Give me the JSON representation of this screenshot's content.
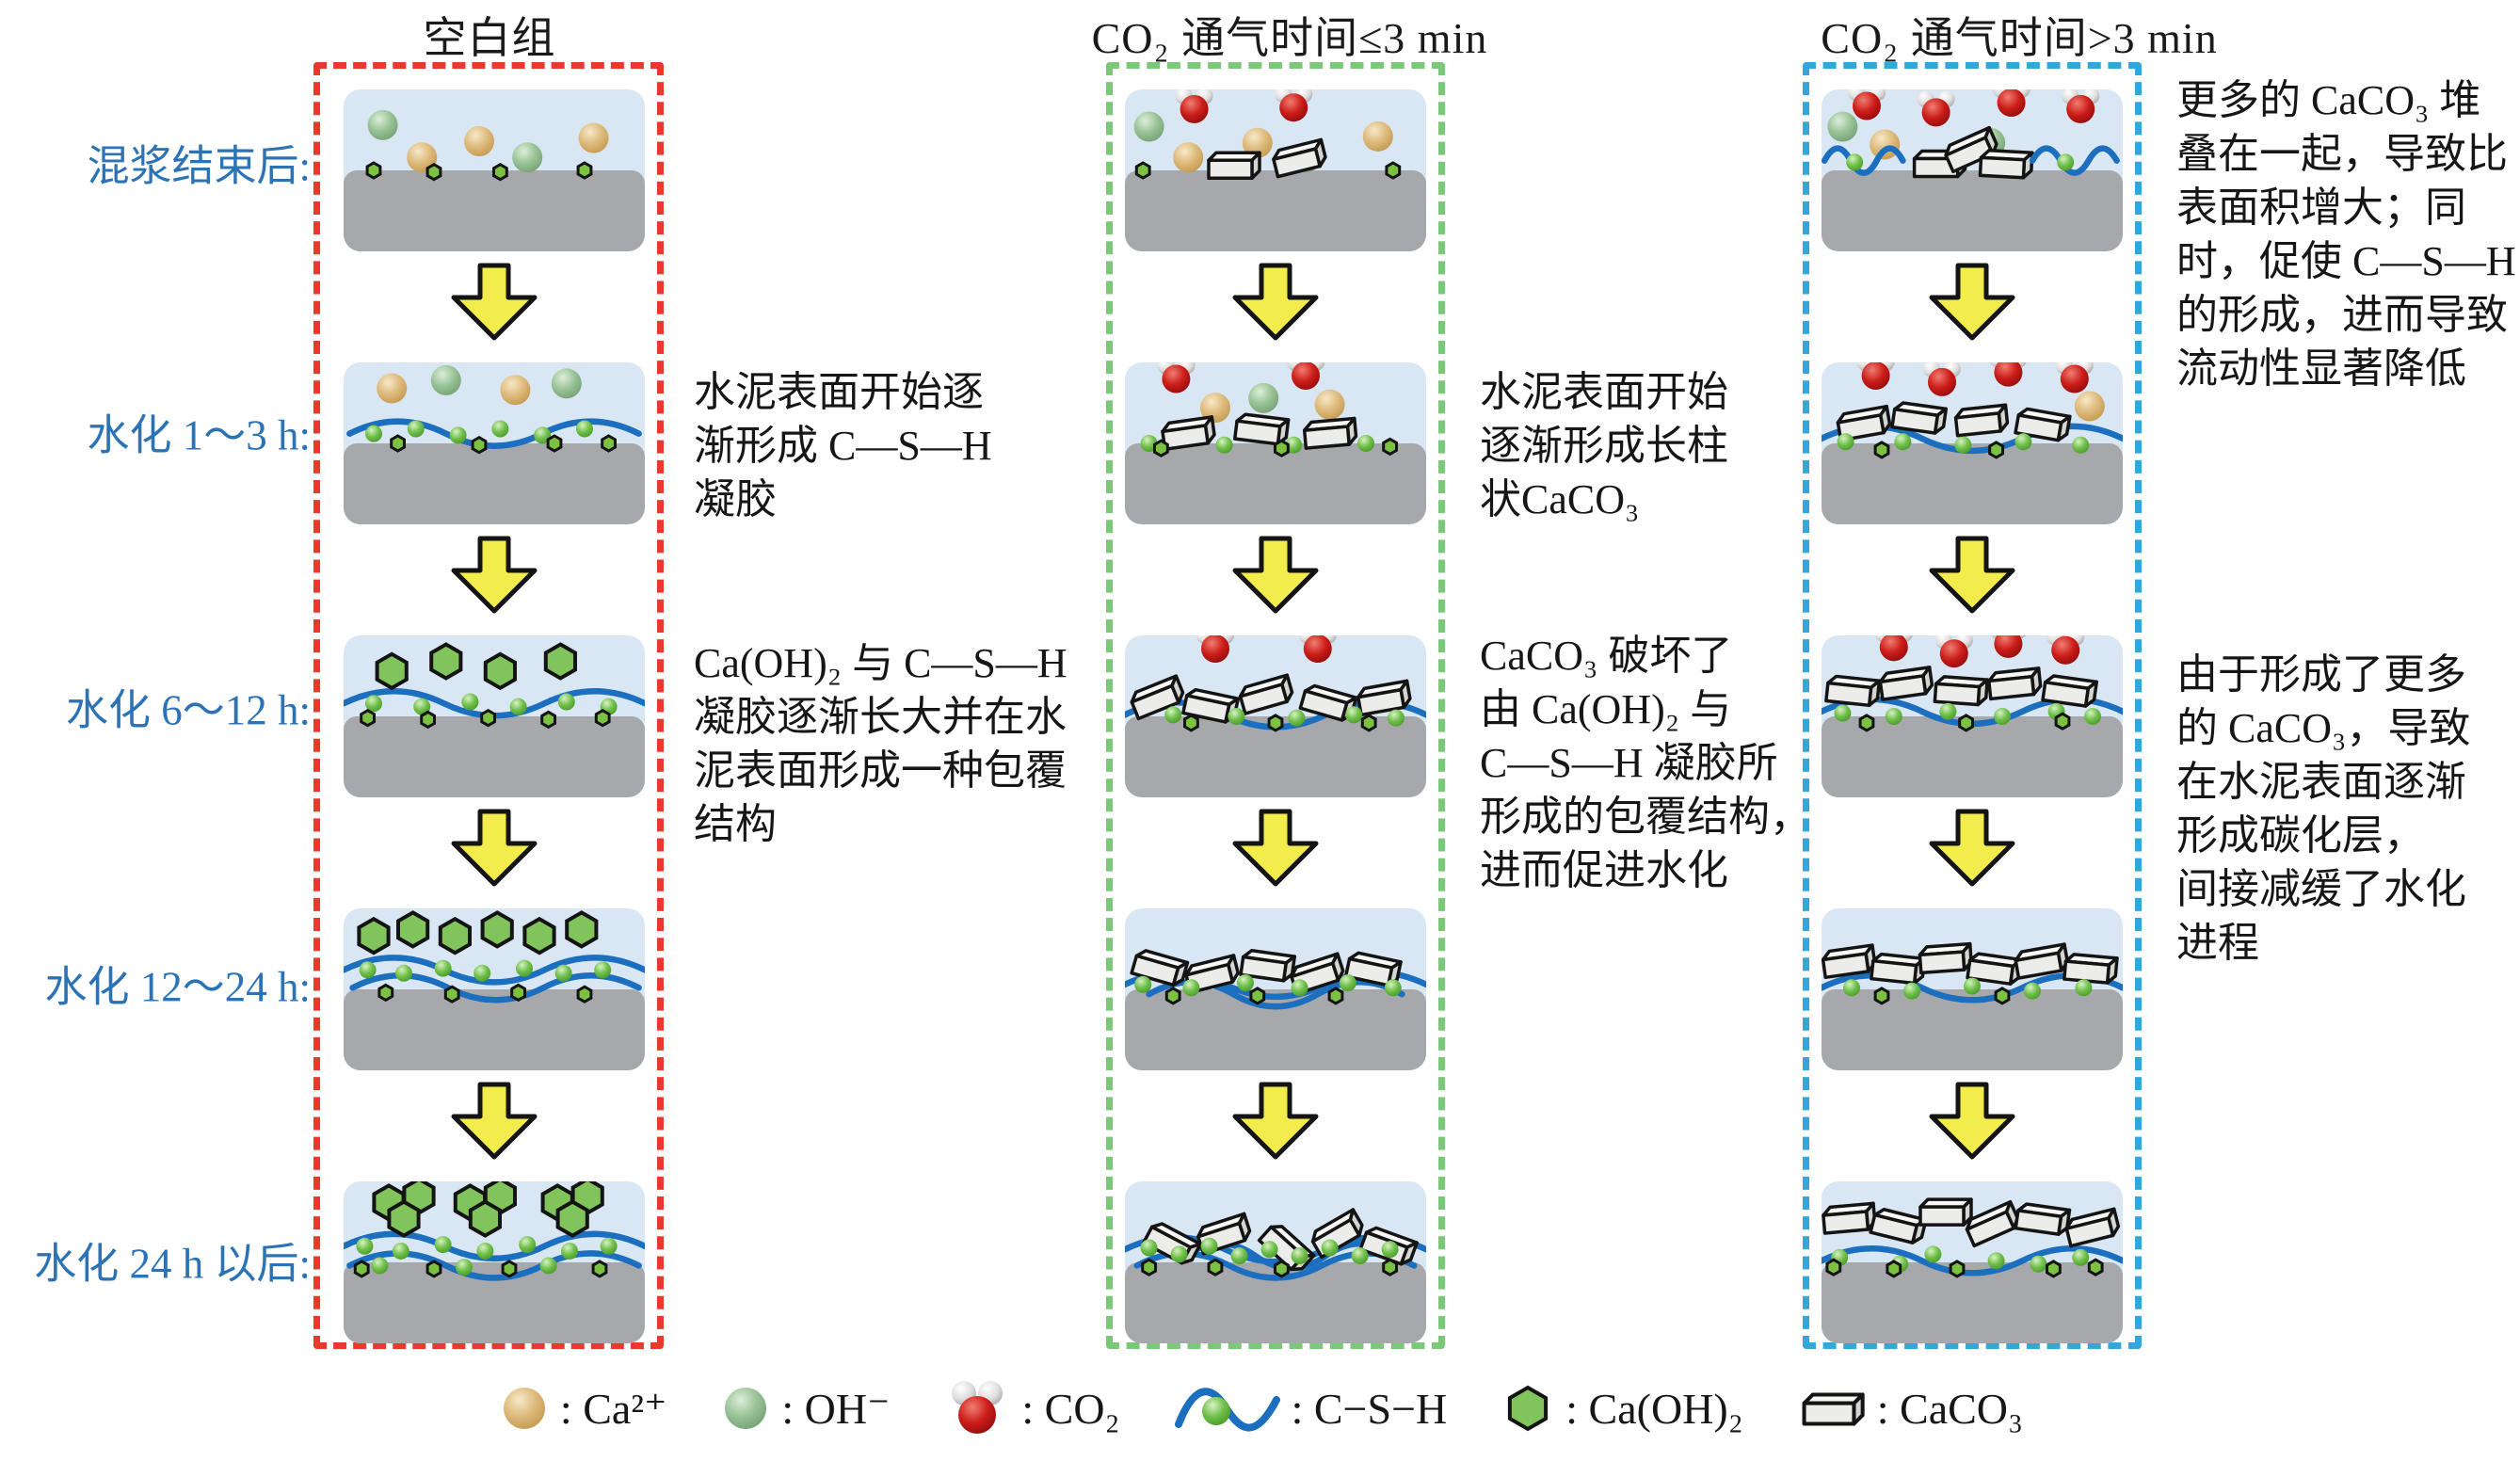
{
  "figure": {
    "columns": [
      {
        "id": "blank",
        "title": "空白组",
        "border_color": "#e9392d"
      },
      {
        "id": "co2-le-3min",
        "title": "CO₂ 通气时间≤3 min",
        "border_color": "#7cc879"
      },
      {
        "id": "co2-gt-3min",
        "title": "CO₂ 通气时间>3 min",
        "border_color": "#33a7dc"
      }
    ],
    "row_labels": [
      "混浆结束后:",
      "水化 1～3 h:",
      "水化 6～12 h:",
      "水化 12～24 h:",
      "水化 24 h 以后:"
    ],
    "annotations": [
      {
        "id": "blank-1-3h",
        "text": "水泥表面开始逐\n渐形成 C—S—H\n凝胶"
      },
      {
        "id": "blank-6-12h",
        "text": "Ca(OH)₂ 与 C—S—H\n凝胶逐渐长大并在水\n泥表面形成一种包覆\n结构"
      },
      {
        "id": "le3-1-3h",
        "text": "水泥表面开始\n逐渐形成长柱\n状CaCO₃"
      },
      {
        "id": "le3-6-12h",
        "text": "CaCO₃ 破坏了\n由 Ca(OH)₂ 与\nC—S—H 凝胶所\n形成的包覆结构，\n进而促进水化"
      },
      {
        "id": "gt3-top",
        "text": "更多的 CaCO₃ 堆\n叠在一起，导致比\n表面积增大；同\n时，促使 C—S—H\n的形成，进而导致\n流动性显著降低"
      },
      {
        "id": "gt3-mid",
        "text": "由于形成了更多\n的 CaCO₃，导致\n在水泥表面逐渐\n形成碳化层，\n间接减缓了水化\n进程"
      }
    ],
    "legend": [
      {
        "icon": "ca-sphere-icon",
        "label": ": Ca²⁺"
      },
      {
        "icon": "oh-sphere-icon",
        "label": ": OH⁻"
      },
      {
        "icon": "co2-molecule-icon",
        "label": ": CO₂"
      },
      {
        "icon": "csh-curve-icon",
        "label": ": C−S−H"
      },
      {
        "icon": "hexagon-icon",
        "label": ": Ca(OH)₂"
      },
      {
        "icon": "caco3-box-icon",
        "label": ": CaCO₃"
      }
    ],
    "colors": {
      "row_label": "#2c73b5",
      "liquid": "#d9e6f3",
      "cement": "#a6a8ab",
      "arrow": "#f2ec4d",
      "csh_line": "#1c6fbf",
      "hexagon": "#82c45c",
      "small_hexagon": "#7cc142",
      "box_face": "#ececea",
      "title_text": "#1a1a1a"
    },
    "scenes": {
      "c0r0": [
        [
          "oh",
          13,
          22
        ],
        [
          "ca",
          26,
          42
        ],
        [
          "ca",
          45,
          32
        ],
        [
          "oh",
          61,
          42
        ],
        [
          "ca",
          83,
          30
        ],
        [
          "shex",
          10,
          50
        ],
        [
          "shex",
          30,
          51
        ],
        [
          "shex",
          52,
          51
        ],
        [
          "shex",
          80,
          50
        ]
      ],
      "c0r1": [
        [
          "csh",
          2,
          44,
          96
        ],
        [
          "ca",
          16,
          16
        ],
        [
          "oh",
          34,
          11
        ],
        [
          "ca",
          57,
          17
        ],
        [
          "oh",
          74,
          13
        ],
        [
          "bead",
          10,
          44
        ],
        [
          "bead",
          24,
          41
        ],
        [
          "bead",
          38,
          45
        ],
        [
          "bead",
          52,
          41
        ],
        [
          "bead",
          66,
          45
        ],
        [
          "bead",
          80,
          41
        ],
        [
          "shex",
          18,
          50
        ],
        [
          "shex",
          45,
          51
        ],
        [
          "shex",
          70,
          50
        ],
        [
          "shex",
          88,
          50
        ]
      ],
      "c0r2": [
        [
          "csh",
          0,
          42,
          100
        ],
        [
          "hex",
          16,
          22
        ],
        [
          "hex",
          34,
          16
        ],
        [
          "hex",
          52,
          22
        ],
        [
          "hex",
          72,
          16
        ],
        [
          "bead",
          10,
          42
        ],
        [
          "bead",
          26,
          44
        ],
        [
          "bead",
          42,
          41
        ],
        [
          "bead",
          58,
          44
        ],
        [
          "bead",
          74,
          41
        ],
        [
          "bead",
          88,
          44
        ],
        [
          "shex",
          8,
          51
        ],
        [
          "shex",
          28,
          52
        ],
        [
          "shex",
          48,
          51
        ],
        [
          "shex",
          68,
          52
        ],
        [
          "shex",
          86,
          51
        ]
      ],
      "c0r3": [
        [
          "csh",
          0,
          38,
          100
        ],
        [
          "csh",
          3,
          49,
          95
        ],
        [
          "hex",
          10,
          17
        ],
        [
          "hex",
          23,
          13
        ],
        [
          "hex",
          37,
          17
        ],
        [
          "hex",
          51,
          13
        ],
        [
          "hex",
          65,
          17
        ],
        [
          "hex",
          79,
          13
        ],
        [
          "bead",
          8,
          38
        ],
        [
          "bead",
          20,
          40
        ],
        [
          "bead",
          33,
          37
        ],
        [
          "bead",
          46,
          40
        ],
        [
          "bead",
          60,
          37
        ],
        [
          "bead",
          73,
          40
        ],
        [
          "bead",
          86,
          38
        ],
        [
          "shex",
          14,
          52
        ],
        [
          "shex",
          36,
          53
        ],
        [
          "shex",
          58,
          52
        ],
        [
          "shex",
          80,
          53
        ]
      ],
      "c0r4": [
        [
          "csh",
          0,
          40,
          100
        ],
        [
          "csh",
          2,
          52,
          96
        ],
        [
          "hex",
          15,
          13
        ],
        [
          "hex",
          25,
          9
        ],
        [
          "hex",
          20,
          23
        ],
        [
          "hex",
          42,
          13
        ],
        [
          "hex",
          52,
          9
        ],
        [
          "hex",
          47,
          23
        ],
        [
          "hex",
          71,
          13
        ],
        [
          "hex",
          81,
          9
        ],
        [
          "hex",
          76,
          23
        ],
        [
          "bead",
          7,
          40
        ],
        [
          "bead",
          19,
          43
        ],
        [
          "bead",
          33,
          39
        ],
        [
          "bead",
          47,
          43
        ],
        [
          "bead",
          61,
          39
        ],
        [
          "bead",
          75,
          43
        ],
        [
          "bead",
          88,
          40
        ],
        [
          "bead",
          12,
          52
        ],
        [
          "bead",
          40,
          53
        ],
        [
          "bead",
          68,
          52
        ],
        [
          "shex",
          6,
          54
        ],
        [
          "shex",
          30,
          54
        ],
        [
          "shex",
          55,
          54
        ],
        [
          "shex",
          85,
          54
        ]
      ],
      "c1r0": [
        [
          "co2",
          23,
          11
        ],
        [
          "co2",
          56,
          10
        ],
        [
          "oh",
          8,
          23
        ],
        [
          "ca",
          21,
          42
        ],
        [
          "ca",
          44,
          33
        ],
        [
          "oh",
          60,
          42
        ],
        [
          "ca",
          84,
          29
        ],
        [
          "box",
          35,
          49,
          0
        ],
        [
          "box",
          57,
          45,
          -14
        ],
        [
          "shex",
          6,
          50
        ],
        [
          "shex",
          89,
          50
        ]
      ],
      "c1r1": [
        [
          "co2",
          17,
          9
        ],
        [
          "co2",
          60,
          7
        ],
        [
          "ca",
          30,
          28
        ],
        [
          "oh",
          46,
          22
        ],
        [
          "ca",
          68,
          26
        ],
        [
          "box",
          20,
          46,
          -8
        ],
        [
          "box",
          44,
          43,
          7
        ],
        [
          "box",
          67,
          46,
          -5
        ],
        [
          "bead",
          8,
          50
        ],
        [
          "bead",
          33,
          51
        ],
        [
          "bead",
          56,
          51
        ],
        [
          "bead",
          80,
          50
        ],
        [
          "shex",
          12,
          53
        ],
        [
          "shex",
          52,
          53
        ],
        [
          "shex",
          88,
          52
        ]
      ],
      "c1r2": [
        [
          "csh",
          0,
          49,
          100
        ],
        [
          "co2",
          30,
          7
        ],
        [
          "co2",
          64,
          7
        ],
        [
          "box",
          10,
          41,
          -22
        ],
        [
          "box",
          27,
          45,
          12
        ],
        [
          "box",
          46,
          39,
          -16
        ],
        [
          "box",
          66,
          43,
          16
        ],
        [
          "box",
          85,
          41,
          -10
        ],
        [
          "bead",
          16,
          49
        ],
        [
          "bead",
          37,
          50
        ],
        [
          "bead",
          57,
          51
        ],
        [
          "bead",
          76,
          49
        ],
        [
          "bead",
          90,
          51
        ],
        [
          "shex",
          22,
          54
        ],
        [
          "shex",
          50,
          54
        ],
        [
          "shex",
          81,
          54
        ]
      ],
      "c1r3": [
        [
          "csh",
          0,
          47,
          100
        ],
        [
          "csh",
          8,
          53,
          84
        ],
        [
          "box",
          10,
          38,
          16
        ],
        [
          "box",
          28,
          43,
          -14
        ],
        [
          "box",
          46,
          37,
          8
        ],
        [
          "box",
          63,
          43,
          -18
        ],
        [
          "box",
          81,
          39,
          12
        ],
        [
          "bead",
          6,
          47
        ],
        [
          "bead",
          22,
          49
        ],
        [
          "bead",
          40,
          46
        ],
        [
          "bead",
          58,
          49
        ],
        [
          "bead",
          74,
          46
        ],
        [
          "bead",
          89,
          49
        ],
        [
          "shex",
          16,
          54
        ],
        [
          "shex",
          44,
          54
        ],
        [
          "shex",
          70,
          54
        ]
      ],
      "c1r4": [
        [
          "csh",
          0,
          42,
          100
        ],
        [
          "csh",
          4,
          52,
          92
        ],
        [
          "csh",
          20,
          46,
          70
        ],
        [
          "box",
          14,
          39,
          28
        ],
        [
          "box",
          32,
          35,
          -18
        ],
        [
          "box",
          52,
          41,
          42
        ],
        [
          "box",
          70,
          35,
          -30
        ],
        [
          "box",
          86,
          41,
          20
        ],
        [
          "bead",
          8,
          41
        ],
        [
          "bead",
          18,
          45
        ],
        [
          "bead",
          28,
          40
        ],
        [
          "bead",
          38,
          46
        ],
        [
          "bead",
          48,
          42
        ],
        [
          "bead",
          58,
          46
        ],
        [
          "bead",
          68,
          41
        ],
        [
          "bead",
          78,
          46
        ],
        [
          "bead",
          88,
          42
        ],
        [
          "shex",
          8,
          53
        ],
        [
          "shex",
          30,
          53
        ],
        [
          "shex",
          52,
          54
        ],
        [
          "shex",
          88,
          53
        ]
      ],
      "c2r0": [
        [
          "co2",
          15,
          9
        ],
        [
          "co2",
          38,
          13
        ],
        [
          "co2",
          63,
          7
        ],
        [
          "co2",
          86,
          11
        ],
        [
          "oh",
          7,
          23
        ],
        [
          "ca",
          21,
          34
        ],
        [
          "oh",
          56,
          33
        ],
        [
          "csh",
          1,
          44,
          26
        ],
        [
          "bead",
          11,
          45
        ],
        [
          "box",
          38,
          48,
          0
        ],
        [
          "box",
          49,
          40,
          -24
        ],
        [
          "box",
          60,
          48,
          3
        ],
        [
          "csh",
          70,
          44,
          28
        ],
        [
          "bead",
          81,
          45
        ]
      ],
      "c2r1": [
        [
          "co2",
          18,
          7
        ],
        [
          "co2",
          40,
          11
        ],
        [
          "co2",
          62,
          5
        ],
        [
          "co2",
          84,
          9
        ],
        [
          "csh",
          0,
          47,
          100
        ],
        [
          "box",
          13,
          40,
          -10
        ],
        [
          "box",
          31,
          36,
          8
        ],
        [
          "box",
          52,
          38,
          -6
        ],
        [
          "box",
          72,
          40,
          10
        ],
        [
          "ca",
          89,
          27
        ],
        [
          "bead",
          8,
          49
        ],
        [
          "bead",
          27,
          49
        ],
        [
          "bead",
          47,
          51
        ],
        [
          "bead",
          67,
          49
        ],
        [
          "bead",
          86,
          51
        ],
        [
          "shex",
          20,
          54
        ],
        [
          "shex",
          58,
          54
        ]
      ],
      "c2r2": [
        [
          "co2",
          24,
          6
        ],
        [
          "co2",
          44,
          10
        ],
        [
          "co2",
          62,
          4
        ],
        [
          "co2",
          81,
          8
        ],
        [
          "csh",
          0,
          47,
          100
        ],
        [
          "box",
          9,
          36,
          6
        ],
        [
          "box",
          27,
          32,
          -8
        ],
        [
          "box",
          45,
          36,
          4
        ],
        [
          "box",
          63,
          32,
          -6
        ],
        [
          "box",
          81,
          36,
          8
        ],
        [
          "bead",
          7,
          48
        ],
        [
          "bead",
          24,
          50
        ],
        [
          "bead",
          42,
          47
        ],
        [
          "bead",
          60,
          50
        ],
        [
          "bead",
          78,
          47
        ],
        [
          "bead",
          90,
          50
        ],
        [
          "shex",
          15,
          54
        ],
        [
          "shex",
          48,
          54
        ],
        [
          "shex",
          80,
          53
        ]
      ],
      "c2r3": [
        [
          "csh",
          0,
          49,
          100
        ],
        [
          "box",
          8,
          35,
          -8
        ],
        [
          "box",
          24,
          39,
          6
        ],
        [
          "box",
          40,
          33,
          -4
        ],
        [
          "box",
          56,
          39,
          8
        ],
        [
          "box",
          72,
          35,
          -10
        ],
        [
          "box",
          88,
          39,
          5
        ],
        [
          "bead",
          10,
          49
        ],
        [
          "bead",
          30,
          51
        ],
        [
          "bead",
          50,
          48
        ],
        [
          "bead",
          70,
          51
        ],
        [
          "bead",
          87,
          49
        ],
        [
          "shex",
          20,
          54
        ],
        [
          "shex",
          60,
          54
        ]
      ],
      "c2r4": [
        [
          "csh",
          0,
          49,
          100
        ],
        [
          "box",
          8,
          25,
          -5
        ],
        [
          "box",
          24,
          29,
          14
        ],
        [
          "box",
          40,
          21,
          0
        ],
        [
          "box",
          56,
          29,
          -24
        ],
        [
          "box",
          72,
          25,
          8
        ],
        [
          "box",
          89,
          31,
          -14
        ],
        [
          "bead",
          6,
          47
        ],
        [
          "bead",
          26,
          51
        ],
        [
          "bead",
          37,
          45
        ],
        [
          "bead",
          58,
          49
        ],
        [
          "bead",
          72,
          51
        ],
        [
          "bead",
          86,
          47
        ],
        [
          "shex",
          4,
          53
        ],
        [
          "shex",
          24,
          54
        ],
        [
          "shex",
          45,
          54
        ],
        [
          "shex",
          77,
          54
        ],
        [
          "shex",
          91,
          53
        ]
      ]
    }
  }
}
